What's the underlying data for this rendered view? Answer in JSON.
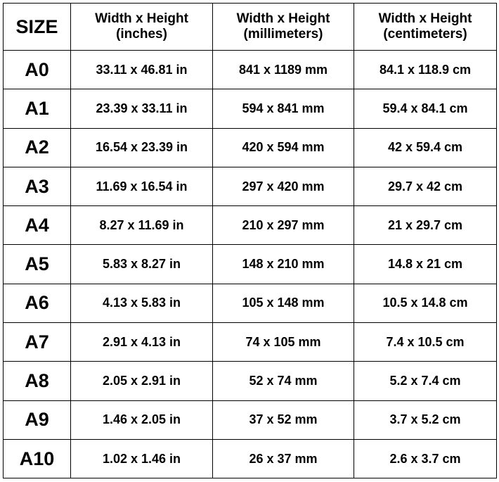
{
  "headers": [
    "SIZE",
    [
      "Width x Height",
      "(inches)"
    ],
    [
      "Width x Height",
      "(millimeters)"
    ],
    [
      "Width x Height",
      "(centimeters)"
    ]
  ],
  "rows": [
    [
      "A0",
      "33.11 x 46.81 in",
      "841 x 1189 mm",
      "84.1 x 118.9 cm"
    ],
    [
      "A1",
      "23.39 x 33.11 in",
      "594 x 841 mm",
      "59.4 x 84.1 cm"
    ],
    [
      "A2",
      "16.54 x 23.39 in",
      "420 x 594 mm",
      "42 x 59.4 cm"
    ],
    [
      "A3",
      "11.69 x 16.54 in",
      "297 x 420 mm",
      "29.7 x 42 cm"
    ],
    [
      "A4",
      "8.27 x 11.69 in",
      "210 x 297 mm",
      "21 x 29.7 cm"
    ],
    [
      "A5",
      "5.83 x 8.27 in",
      "148 x 210 mm",
      "14.8 x 21 cm"
    ],
    [
      "A6",
      "4.13 x 5.83 in",
      "105 x 148 mm",
      "10.5 x 14.8 cm"
    ],
    [
      "A7",
      "2.91 x 4.13 in",
      "74 x 105 mm",
      "7.4 x 10.5 cm"
    ],
    [
      "A8",
      "2.05 x 2.91 in",
      "52 x 74 mm",
      "5.2 x 7.4 cm"
    ],
    [
      "A9",
      "1.46 x 2.05 in",
      "37 x 52 mm",
      "3.7 x 5.2 cm"
    ],
    [
      "A10",
      "1.02 x 1.46 in",
      "26 x 37 mm",
      "2.6 x 3.7 cm"
    ]
  ]
}
